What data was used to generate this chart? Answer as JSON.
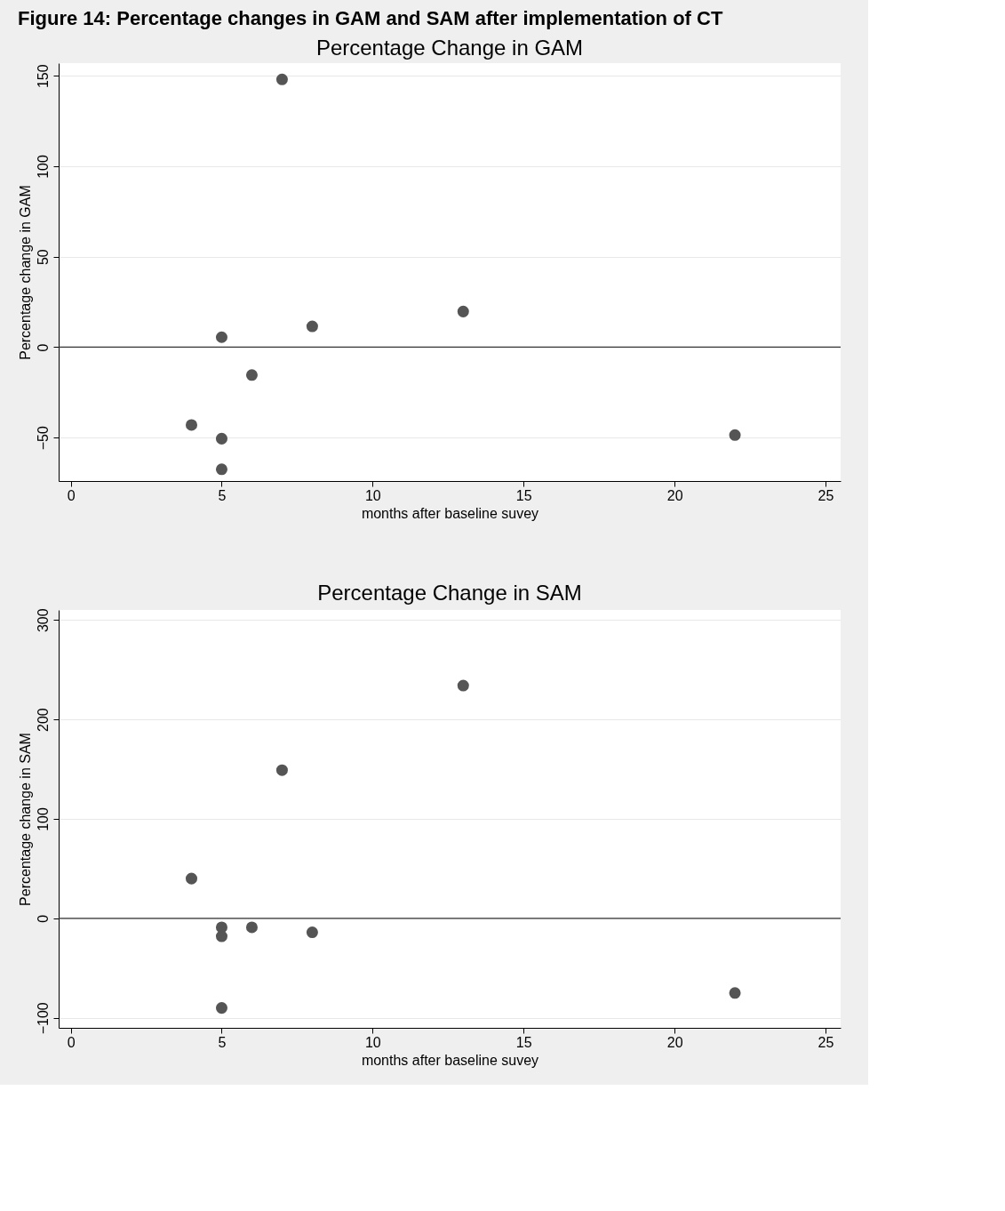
{
  "chart_data": [
    {
      "type": "scatter",
      "title": "Percentage Change in GAM",
      "xlabel": "months after baseline suvey",
      "ylabel": "Percentage change in GAM",
      "annotations": [
        "Figure 14: Percentage changes in GAM and SAM after implementation of CT"
      ],
      "x": [
        7,
        5,
        8,
        13,
        6,
        4,
        5,
        5,
        22
      ],
      "series": [
        {
          "color": "#555555",
          "values": [
            148,
            5.5,
            11.5,
            19.7,
            -15.4,
            -43,
            -50.6,
            -67.5,
            -48.6
          ]
        }
      ],
      "xlim": [
        -0.4,
        25.5
      ],
      "xticks": [
        0,
        5,
        10,
        15,
        20,
        25
      ],
      "ylim": [
        -74,
        157
      ],
      "yticks": [
        -50,
        0,
        50,
        100,
        150
      ],
      "ref_lines": [
        {
          "axis": "y",
          "value": 0,
          "color": "#333333"
        }
      ],
      "grid": "y",
      "marker": "circle"
    },
    {
      "type": "scatter",
      "title": "Percentage Change in SAM",
      "xlabel": "months after baseline suvey",
      "ylabel": "Percentage change in SAM",
      "x": [
        4,
        5,
        5,
        6,
        7,
        8,
        13,
        5,
        22
      ],
      "series": [
        {
          "color": "#555555",
          "values": [
            40,
            -9,
            -18,
            -9,
            149,
            -14,
            234,
            -90,
            -75
          ]
        }
      ],
      "xlim": [
        -0.4,
        25.5
      ],
      "xticks": [
        0,
        5,
        10,
        15,
        20,
        25
      ],
      "ylim": [
        -110,
        310
      ],
      "yticks": [
        -100,
        0,
        100,
        200,
        300
      ],
      "ref_lines": [
        {
          "axis": "y",
          "value": 0,
          "color": "#333333"
        }
      ],
      "grid": "y",
      "marker": "circle"
    }
  ]
}
